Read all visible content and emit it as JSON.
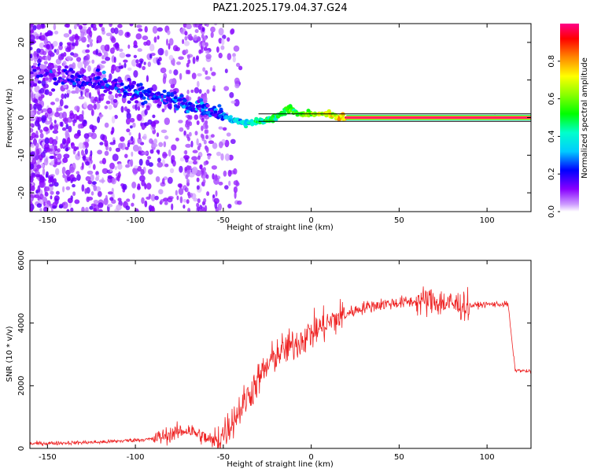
{
  "title": "PAZ1.2025.179.04.37.G24",
  "chart_data": [
    {
      "type": "heatmap",
      "xlabel": "Height of straight line (km)",
      "ylabel": "Frequency (Hz)",
      "xlim": [
        -160,
        125
      ],
      "ylim": [
        -25,
        25
      ],
      "xticks": [
        -150,
        -100,
        -50,
        0,
        50,
        100
      ],
      "yticks": [
        -20,
        -10,
        0,
        10,
        20
      ],
      "ridge": {
        "description_points_x": [
          -150,
          -125,
          -100,
          -85,
          -75,
          -65,
          -55,
          -45,
          -38,
          -30,
          -20,
          -12,
          -8,
          0,
          10,
          20,
          50,
          80,
          125
        ],
        "description_points_y": [
          12,
          10,
          7,
          5,
          4,
          3,
          1.5,
          -0.5,
          -1.5,
          -1,
          0,
          2.5,
          1,
          1,
          1,
          0,
          0,
          0,
          0
        ]
      },
      "guide_lines_hz": [
        1,
        -1
      ],
      "colorbar": {
        "label": "Normalized spectral amplitude",
        "range": [
          0,
          1
        ],
        "ticks": [
          0.0,
          0.2,
          0.4,
          0.6,
          0.8
        ],
        "tick_labels": [
          "0.0",
          "0.2",
          "0.4",
          "0.6",
          "0.8"
        ]
      }
    },
    {
      "type": "line",
      "xlabel": "Height of straight line (km)",
      "ylabel": "SNR (10 * v/v)",
      "xlim": [
        -160,
        125
      ],
      "ylim": [
        0,
        6000
      ],
      "xticks": [
        -150,
        -100,
        -50,
        0,
        50,
        100
      ],
      "yticks": [
        0,
        2000,
        4000,
        6000
      ],
      "color": "#ee2222",
      "envelope": {
        "x": [
          -160,
          -120,
          -90,
          -70,
          -55,
          -48,
          -40,
          -30,
          -20,
          -10,
          0,
          10,
          20,
          30,
          40,
          50,
          60,
          70,
          80,
          90,
          100,
          112,
          114,
          116,
          125
        ],
        "y": [
          150,
          200,
          300,
          600,
          200,
          600,
          1300,
          2200,
          3000,
          3300,
          3700,
          4000,
          4300,
          4500,
          4600,
          4650,
          4700,
          4700,
          4600,
          4550,
          4600,
          4600,
          3500,
          2500,
          2450
        ]
      }
    }
  ]
}
